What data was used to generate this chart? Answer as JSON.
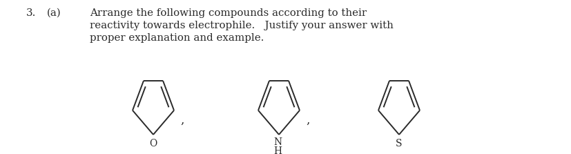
{
  "title_number": "3.",
  "label_a": "(a)",
  "text_line1": "Arrange the following compounds according to their",
  "text_line2": "reactivity towards electrophile.   Justify your answer with",
  "text_line3": "proper explanation and example.",
  "bg_color": "#ffffff",
  "text_color": "#2a2a2a",
  "font_size_text": 10.8,
  "heteroatom1": "O",
  "heteroatom2": "N",
  "heteroatom2b": "H",
  "heteroatom3": "S",
  "line_color": "#2a2a2a",
  "line_width": 1.4
}
